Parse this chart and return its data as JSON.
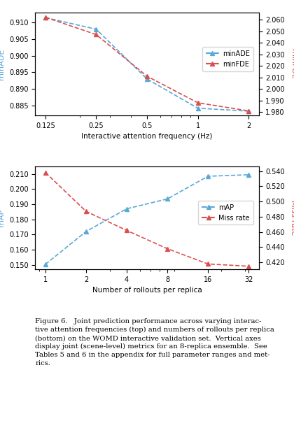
{
  "top": {
    "x": [
      0.125,
      0.25,
      0.5,
      1.0,
      2.0
    ],
    "minADE": [
      0.9115,
      0.908,
      0.893,
      0.8842,
      0.8833
    ],
    "minFDE": [
      2.062,
      2.047,
      2.011,
      1.988,
      1.981
    ],
    "xlabel": "Interactive attention frequency (Hz)",
    "ylabel_left": "minADE",
    "ylabel_right": "minFDE",
    "ylim_left": [
      0.882,
      0.913
    ],
    "ylim_right": [
      1.977,
      2.066
    ],
    "yticks_left": [
      0.885,
      0.89,
      0.895,
      0.9,
      0.905,
      0.91
    ],
    "yticks_right": [
      1.98,
      1.99,
      2.0,
      2.01,
      2.02,
      2.03,
      2.04,
      2.05,
      2.06
    ],
    "xticks": [
      0.125,
      0.25,
      0.5,
      1.0,
      2.0
    ],
    "xticklabels": [
      "0.125",
      "0.25",
      "0.5",
      "1",
      "2"
    ]
  },
  "bottom": {
    "x": [
      1,
      2,
      4,
      8,
      16,
      32
    ],
    "mAP": [
      0.1503,
      0.172,
      0.187,
      0.1935,
      0.2085,
      0.2095
    ],
    "miss_rate": [
      0.538,
      0.487,
      0.462,
      0.438,
      0.418,
      0.415
    ],
    "xlabel": "Number of rollouts per replica",
    "ylabel_left": "mAP",
    "ylabel_right": "Miss rate",
    "ylim_left": [
      0.147,
      0.215
    ],
    "ylim_right": [
      0.411,
      0.546
    ],
    "yticks_left": [
      0.15,
      0.16,
      0.17,
      0.18,
      0.19,
      0.2,
      0.21
    ],
    "yticks_right": [
      0.42,
      0.44,
      0.46,
      0.48,
      0.5,
      0.52,
      0.54
    ],
    "xticks": [
      1,
      2,
      4,
      8,
      16,
      32
    ],
    "xticklabels": [
      "1",
      "2",
      "4",
      "8",
      "16",
      "32"
    ]
  },
  "color_blue": "#5aa8d8",
  "color_red": "#d94f4f",
  "caption_lines": [
    "Figure 6.   Joint prediction performance across varying interac-",
    "tive attention frequencies (top) and numbers of rollouts per replica",
    "(bottom) on the WOMD interactive validation set.  Vertical axes",
    "display joint (scene-level) metrics for an 8-replica ensemble.  See",
    "Tables 5 and 6 in the appendix for full parameter ranges and met-",
    "rics."
  ]
}
